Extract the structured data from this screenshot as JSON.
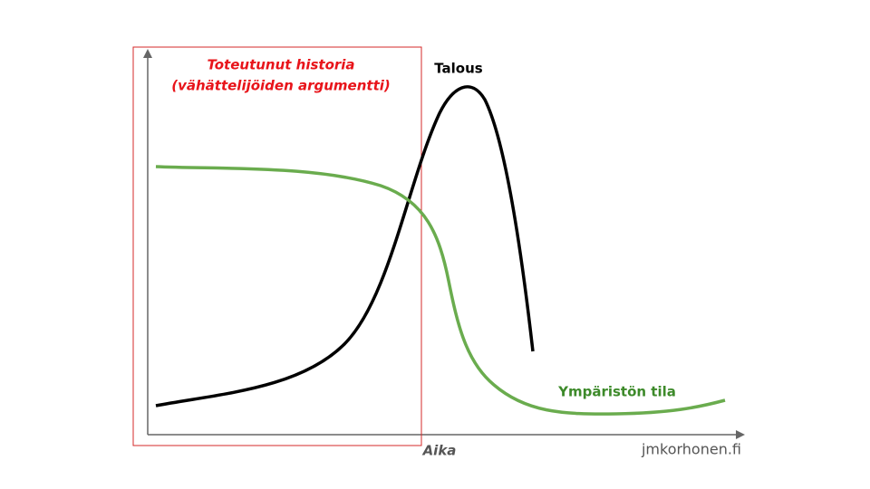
{
  "highlight_box": {
    "title_lines": [
      "Toteutunut historia",
      "(vähättelijöiden argumentti)"
    ]
  },
  "curves": {
    "economy_label": "Talous",
    "environment_label": "Ympäristön tila"
  },
  "x_axis_label": "Aika",
  "credit": "jmkorhonen.fi"
}
